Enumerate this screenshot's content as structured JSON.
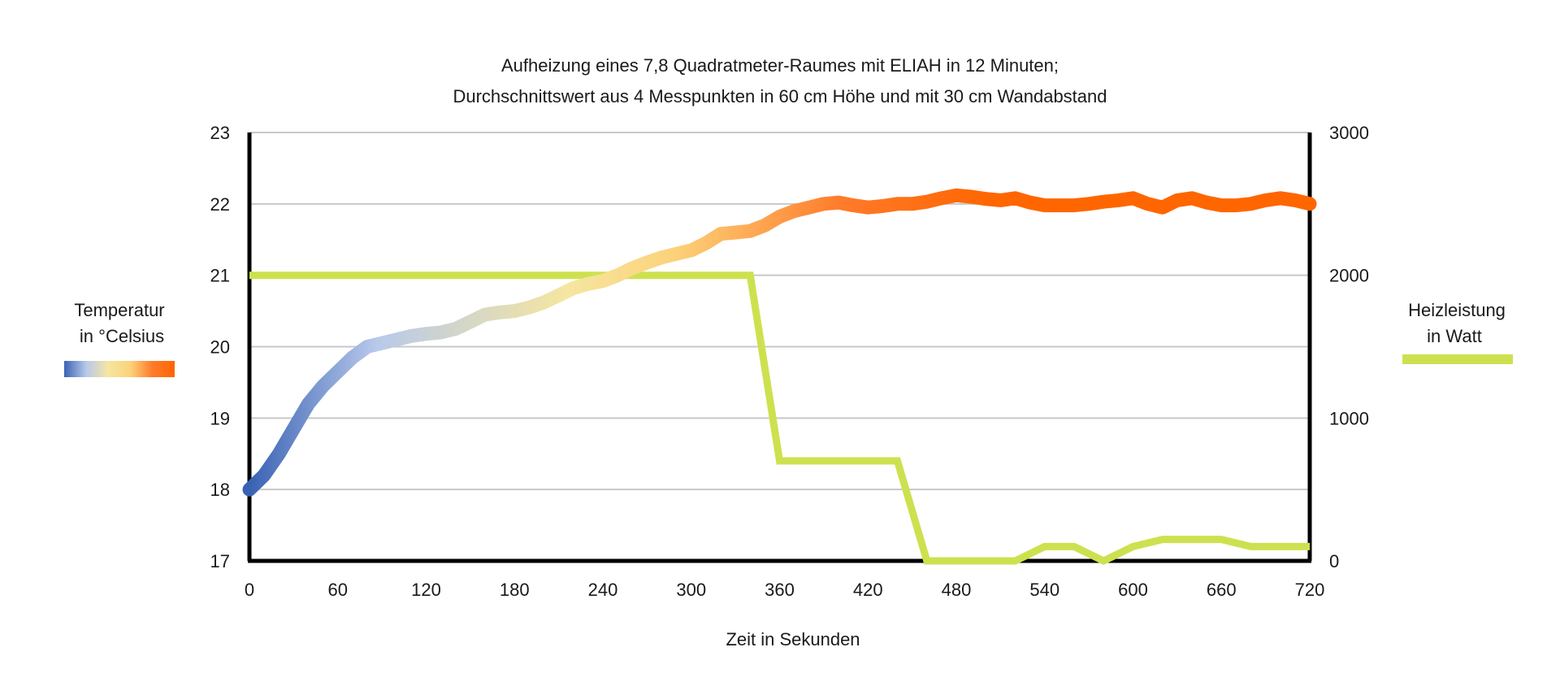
{
  "chart_data": {
    "type": "line",
    "title_lines": [
      "Aufheizung eines 7,8 Quadratmeter-Raumes mit ELIAH in 12 Minuten;",
      "Durchschnittswert aus 4 Messpunkten in 60 cm Höhe und mit 30 cm Wandabstand"
    ],
    "xlabel": "Zeit in Sekunden",
    "x_ticks": [
      "0",
      "60",
      "120",
      "180",
      "240",
      "300",
      "360",
      "420",
      "480",
      "540",
      "600",
      "660",
      "720"
    ],
    "xlim": [
      0,
      720
    ],
    "y_left": {
      "ticks": [
        "17",
        "18",
        "19",
        "20",
        "21",
        "22",
        "23"
      ],
      "lim": [
        17,
        23
      ]
    },
    "y_right": {
      "ticks": [
        "0",
        "1000",
        "2000",
        "3000"
      ],
      "lim": [
        0,
        3000
      ]
    },
    "grid": true,
    "series": [
      {
        "name_lines": [
          "Temperatur",
          "in °Celsius"
        ],
        "axis": "left",
        "gradient_colors": [
          "#3a62b4",
          "#b8c9ea",
          "#f5e6a0",
          "#fcd27a",
          "#ff7a2a",
          "#ff6600"
        ],
        "x": [
          0,
          10,
          20,
          30,
          40,
          50,
          60,
          70,
          80,
          90,
          100,
          110,
          120,
          130,
          140,
          150,
          160,
          170,
          180,
          190,
          200,
          210,
          220,
          230,
          240,
          250,
          260,
          270,
          280,
          290,
          300,
          310,
          320,
          330,
          340,
          350,
          360,
          370,
          380,
          390,
          400,
          410,
          420,
          430,
          440,
          450,
          460,
          470,
          480,
          490,
          500,
          510,
          520,
          530,
          540,
          550,
          560,
          570,
          580,
          590,
          600,
          610,
          620,
          630,
          640,
          650,
          660,
          670,
          680,
          690,
          700,
          710,
          720
        ],
        "y": [
          18.0,
          18.2,
          18.5,
          18.85,
          19.2,
          19.45,
          19.65,
          19.85,
          20.0,
          20.05,
          20.1,
          20.15,
          20.18,
          20.2,
          20.25,
          20.35,
          20.45,
          20.48,
          20.5,
          20.55,
          20.62,
          20.72,
          20.82,
          20.88,
          20.92,
          21.0,
          21.1,
          21.18,
          21.25,
          21.3,
          21.35,
          21.45,
          21.58,
          21.6,
          21.62,
          21.7,
          21.82,
          21.9,
          21.95,
          22.0,
          22.02,
          21.98,
          21.95,
          21.97,
          22.0,
          22.0,
          22.03,
          22.08,
          22.12,
          22.1,
          22.07,
          22.05,
          22.08,
          22.02,
          21.98,
          21.98,
          21.98,
          22.0,
          22.03,
          22.05,
          22.08,
          22.0,
          21.95,
          22.05,
          22.08,
          22.02,
          21.98,
          21.98,
          22.0,
          22.05,
          22.08,
          22.05,
          22.0
        ]
      },
      {
        "name_lines": [
          "Heizleistung",
          "in Watt"
        ],
        "axis": "right",
        "color": "#cde14f",
        "x": [
          0,
          340,
          360,
          440,
          460,
          520,
          540,
          560,
          580,
          600,
          620,
          660,
          680,
          720
        ],
        "y": [
          2000,
          2000,
          700,
          700,
          0,
          0,
          100,
          100,
          0,
          100,
          150,
          150,
          100,
          100
        ]
      }
    ]
  }
}
